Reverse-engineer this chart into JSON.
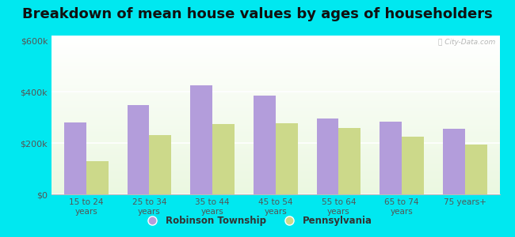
{
  "title": "Breakdown of mean house values by ages of householders",
  "categories": [
    "15 to 24\nyears",
    "25 to 34\nyears",
    "35 to 44\nyears",
    "45 to 54\nyears",
    "55 to 64\nyears",
    "65 to 74\nyears",
    "75 years+"
  ],
  "robinson": [
    280000,
    350000,
    425000,
    385000,
    295000,
    285000,
    255000
  ],
  "pennsylvania": [
    130000,
    230000,
    275000,
    278000,
    258000,
    225000,
    193000
  ],
  "robinson_color": "#b39ddb",
  "pennsylvania_color": "#ccd98a",
  "background_color": "#00e8f0",
  "ylabel_ticks": [
    "$0",
    "$200k",
    "$400k",
    "$600k"
  ],
  "ytick_vals": [
    0,
    200000,
    400000,
    600000
  ],
  "ylim": [
    0,
    620000
  ],
  "legend_robinson": "Robinson Township",
  "legend_pennsylvania": "Pennsylvania",
  "title_fontsize": 13,
  "bar_width": 0.35,
  "watermark": "ⓘ City-Data.com"
}
